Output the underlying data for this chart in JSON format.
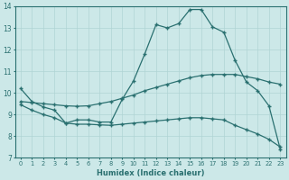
{
  "xlabel": "Humidex (Indice chaleur)",
  "bg_color": "#cce8e8",
  "line_color": "#2a7070",
  "grid_color": "#b0d4d4",
  "xlim": [
    -0.5,
    23.5
  ],
  "ylim": [
    7,
    14
  ],
  "xticks": [
    0,
    1,
    2,
    3,
    4,
    5,
    6,
    7,
    8,
    9,
    10,
    11,
    12,
    13,
    14,
    15,
    16,
    17,
    18,
    19,
    20,
    21,
    22,
    23
  ],
  "yticks": [
    7,
    8,
    9,
    10,
    11,
    12,
    13,
    14
  ],
  "line1_x": [
    0,
    1,
    2,
    3,
    4,
    5,
    6,
    7,
    8,
    9,
    10,
    11,
    12,
    13,
    14,
    15,
    16,
    17,
    18,
    19,
    20,
    21,
    22,
    23
  ],
  "line1_y": [
    10.2,
    9.6,
    9.35,
    9.2,
    8.6,
    8.75,
    8.75,
    8.65,
    8.65,
    9.7,
    10.55,
    11.8,
    13.15,
    13.0,
    13.2,
    13.85,
    13.85,
    13.05,
    12.8,
    11.5,
    10.5,
    10.1,
    9.4,
    7.4
  ],
  "line2_x": [
    0,
    1,
    2,
    3,
    4,
    5,
    6,
    7,
    8,
    9,
    10,
    11,
    12,
    13,
    14,
    15,
    16,
    17,
    18,
    19,
    20,
    21,
    22,
    23
  ],
  "line2_y": [
    9.6,
    9.55,
    9.5,
    9.45,
    9.4,
    9.38,
    9.4,
    9.5,
    9.6,
    9.75,
    9.9,
    10.1,
    10.25,
    10.4,
    10.55,
    10.7,
    10.8,
    10.85,
    10.85,
    10.85,
    10.75,
    10.65,
    10.5,
    10.4
  ],
  "line3_x": [
    0,
    1,
    2,
    3,
    4,
    5,
    6,
    7,
    8,
    9,
    10,
    11,
    12,
    13,
    14,
    15,
    16,
    17,
    18,
    19,
    20,
    21,
    22,
    23
  ],
  "line3_y": [
    9.45,
    9.2,
    9.0,
    8.85,
    8.6,
    8.55,
    8.55,
    8.52,
    8.5,
    8.55,
    8.6,
    8.65,
    8.7,
    8.75,
    8.8,
    8.85,
    8.85,
    8.8,
    8.75,
    8.5,
    8.3,
    8.1,
    7.85,
    7.5
  ]
}
